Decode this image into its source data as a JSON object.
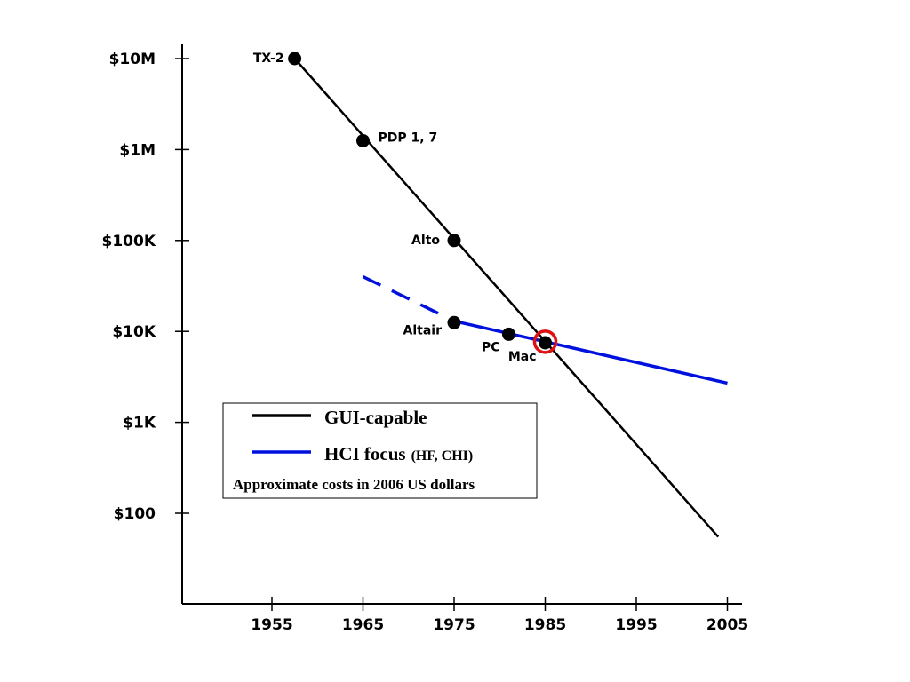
{
  "chart_data": {
    "type": "line",
    "y_scale": "log",
    "xlim": [
      1945,
      2008
    ],
    "ylim": [
      10,
      10000000
    ],
    "x_ticks": [
      1955,
      1965,
      1975,
      1985,
      1995,
      2005
    ],
    "x_tick_labels": [
      "1955",
      "1965",
      "1975",
      "1985",
      "1995",
      "2005"
    ],
    "y_ticks": [
      10000000,
      1000000,
      100000,
      10000,
      1000,
      100
    ],
    "y_tick_labels": [
      "$10M",
      "$1M",
      "$100K",
      "$10K",
      "$1K",
      "$100"
    ],
    "series": [
      {
        "name": "GUI-capable",
        "color": "#000000",
        "style": "solid",
        "line": [
          [
            1957.5,
            10000000
          ],
          [
            2004,
            55
          ]
        ],
        "points": [
          {
            "label": "TX-2",
            "x": 1957.5,
            "y": 10000000
          },
          {
            "label": "PDP 1, 7",
            "x": 1965,
            "y": 1250000
          },
          {
            "label": "Alto",
            "x": 1975,
            "y": 100000
          },
          {
            "label": "Mac",
            "x": 1985,
            "y": 7500
          }
        ]
      },
      {
        "name": "HCI focus",
        "color": "#0011dd",
        "style": "solid",
        "dashed_segment": [
          [
            1965,
            40000
          ],
          [
            1975,
            13000
          ]
        ],
        "line": [
          [
            1975,
            13000
          ],
          [
            2005,
            2700
          ]
        ],
        "points": [
          {
            "label": "Altair",
            "x": 1975,
            "y": 12500
          },
          {
            "label": "PC",
            "x": 1981,
            "y": 9300
          }
        ]
      }
    ],
    "highlight": {
      "x": 1985,
      "y": 7700,
      "color": "#dd1111"
    },
    "legend": {
      "placement": "bottom-left",
      "entries": [
        {
          "label": "GUI-capable",
          "suffix": "",
          "color": "#000000"
        },
        {
          "label": "HCI focus",
          "suffix": "(HF, CHI)",
          "color": "#0011dd"
        }
      ],
      "note": "Approximate costs in 2006 US dollars"
    },
    "grid": false
  }
}
